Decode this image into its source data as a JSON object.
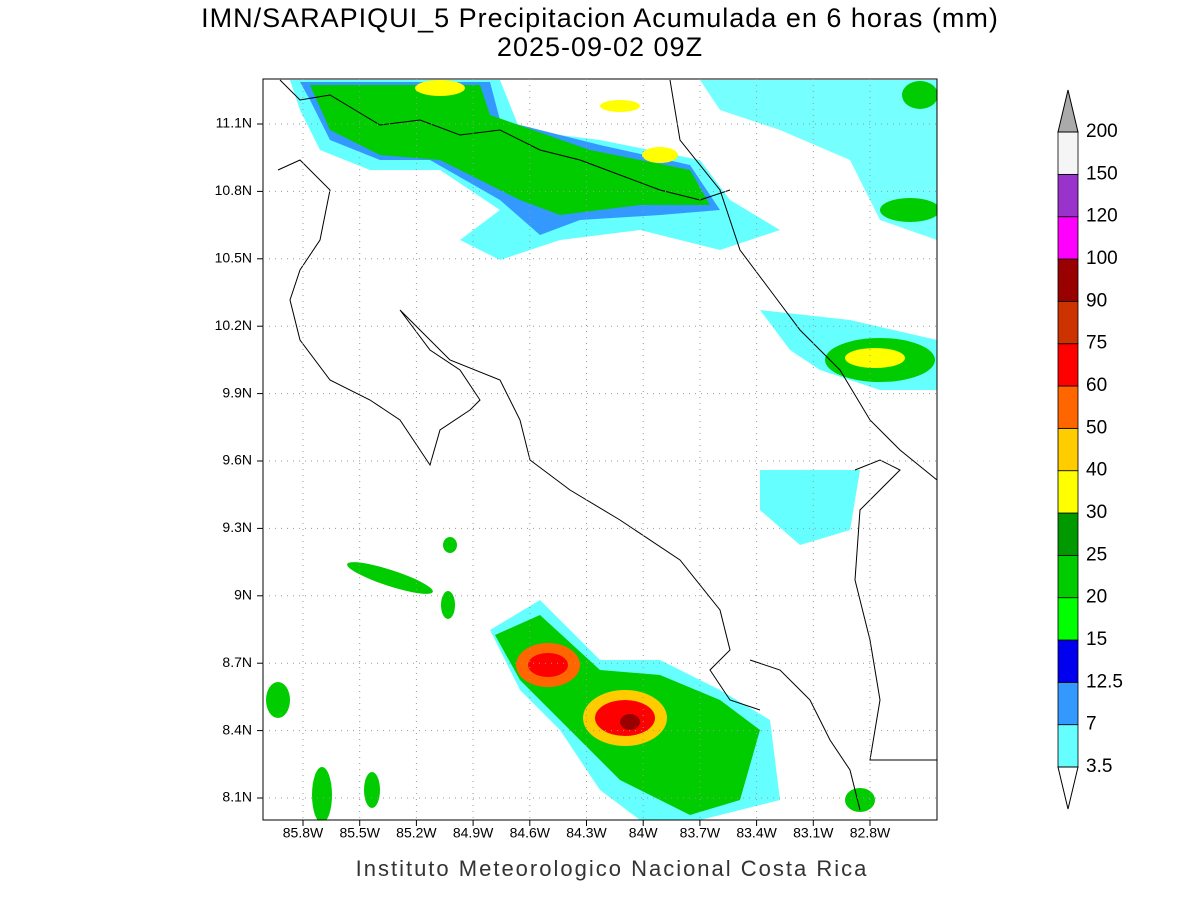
{
  "header": {
    "title": "IMN/SARAPIQUI_5 Precipitacion Acumulada en 6 horas (mm)",
    "subtitle": "2025-09-02 09Z"
  },
  "map": {
    "lat_labels": [
      "11.1N",
      "10.8N",
      "10.5N",
      "10.2N",
      "9.9N",
      "9.6N",
      "9.3N",
      "9N",
      "8.7N",
      "8.4N",
      "8.1N"
    ],
    "lon_labels": [
      "85.8W",
      "85.5W",
      "85.2W",
      "84.9W",
      "84.6W",
      "84.3W",
      "84W",
      "83.7W",
      "83.4W",
      "83.1W",
      "82.8W"
    ]
  },
  "colorbar": {
    "levels": [
      "3.5",
      "7",
      "12.5",
      "15",
      "20",
      "25",
      "30",
      "40",
      "50",
      "60",
      "75",
      "90",
      "100",
      "120",
      "150",
      "200"
    ],
    "colors": [
      "#66ffff",
      "#3399ff",
      "#0000ee",
      "#00ff00",
      "#00cc00",
      "#009900",
      "#ffff00",
      "#ffcc00",
      "#ff6600",
      "#ff0000",
      "#cc3300",
      "#990000",
      "#ff00ff",
      "#9933cc",
      "#f5f5f5"
    ],
    "over_color": "#aaaaaa",
    "under_color": "#ffffff"
  },
  "footer": "Instituto Meteorologico Nacional Costa Rica"
}
